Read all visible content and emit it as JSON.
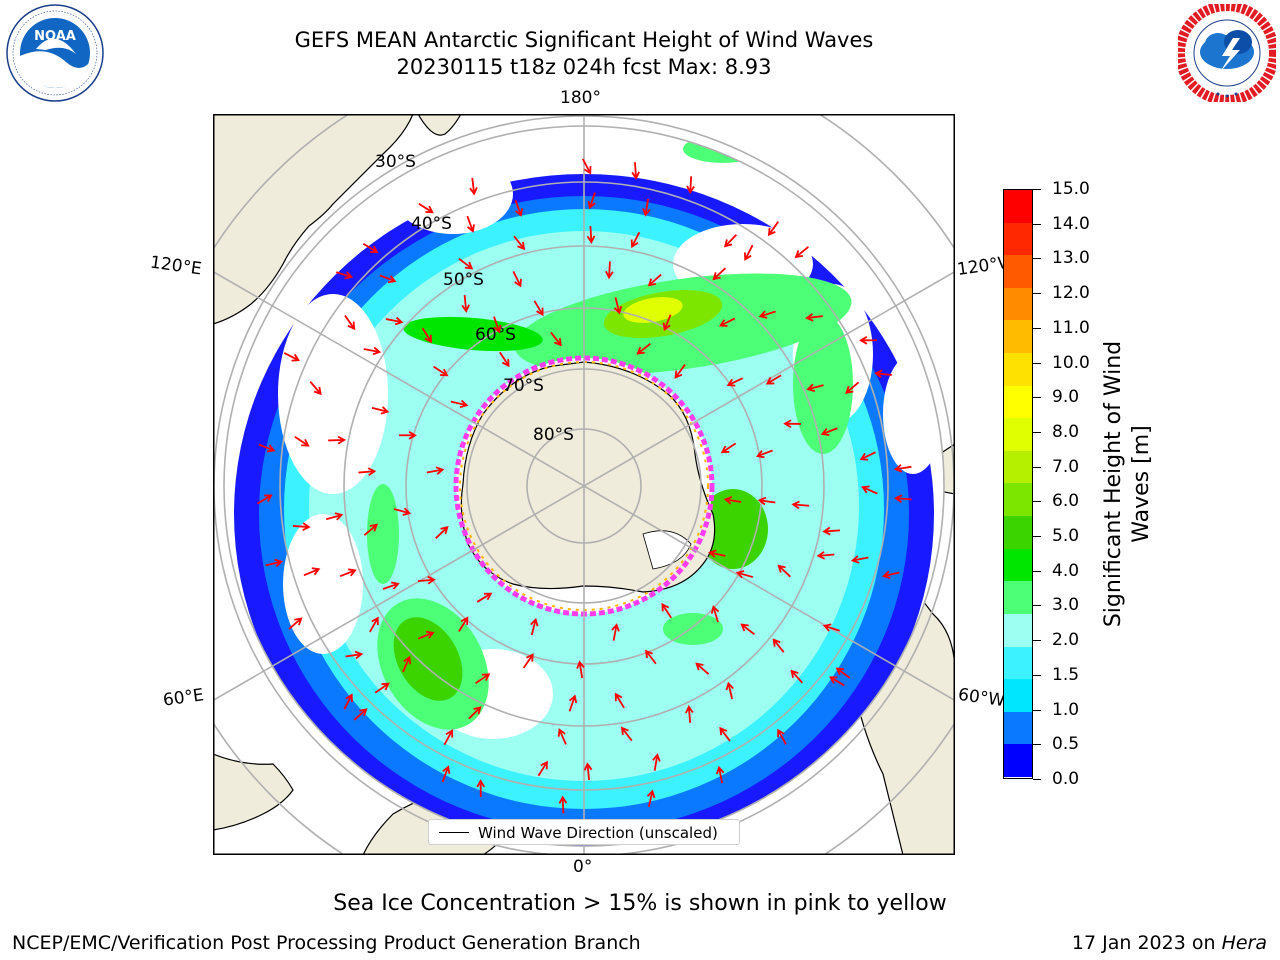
{
  "header": {
    "title_line1": "GEFS MEAN Antarctic Significant Height of Wind Waves",
    "title_line2": "20230115 t18z 024h fcst   Max: 8.93"
  },
  "logos": {
    "left": {
      "name": "noaa-logo",
      "text": "NOAA",
      "ring_text": "NATIONAL OCEANIC AND ATMOSPHERIC ADMINISTRATION · U.S. DEPARTMENT OF COMMERCE"
    },
    "right": {
      "name": "nws-logo",
      "ring_text": "NATIONAL WEATHER SERVICE"
    }
  },
  "map": {
    "projection": "south-polar-stereographic",
    "longitude_labels": {
      "top": "180°",
      "bottom": "0°",
      "upper_left": "120°E",
      "upper_right": "120°W",
      "lower_left": "60°E",
      "lower_right": "60°W"
    },
    "latitude_labels": [
      "30°S",
      "40°S",
      "50°S",
      "60°S",
      "70°S",
      "80°S"
    ],
    "legend": "Wind Wave Direction (unscaled)",
    "arrow_color": "#ff0000",
    "land_color": "#efecdc",
    "grid_color": "#b0b0b0"
  },
  "colorbar": {
    "title_line1": "Significant Height of Wind",
    "title_line2": "Waves [m]",
    "tick_labels": [
      "0.0",
      "0.5",
      "1.0",
      "1.5",
      "2.0",
      "3.0",
      "4.0",
      "5.0",
      "6.0",
      "7.0",
      "8.0",
      "9.0",
      "10.0",
      "11.0",
      "12.0",
      "13.0",
      "14.0",
      "15.0"
    ],
    "colors": [
      "#0000ff",
      "#0a78ff",
      "#00e6ff",
      "#3cf2ff",
      "#9cfff2",
      "#4dff77",
      "#00e600",
      "#3bd400",
      "#7ce600",
      "#b4f000",
      "#e0ff00",
      "#ffff00",
      "#ffe100",
      "#ffbb00",
      "#ff8c00",
      "#ff5a00",
      "#ff2800",
      "#ff0000"
    ]
  },
  "caption": "Sea Ice Concentration > 15% is shown in pink to yellow",
  "footer": {
    "left": "NCEP/EMC/Verification Post Processing Product Generation Branch",
    "right_prefix": "17 Jan 2023 on ",
    "right_italic": "Hera"
  }
}
